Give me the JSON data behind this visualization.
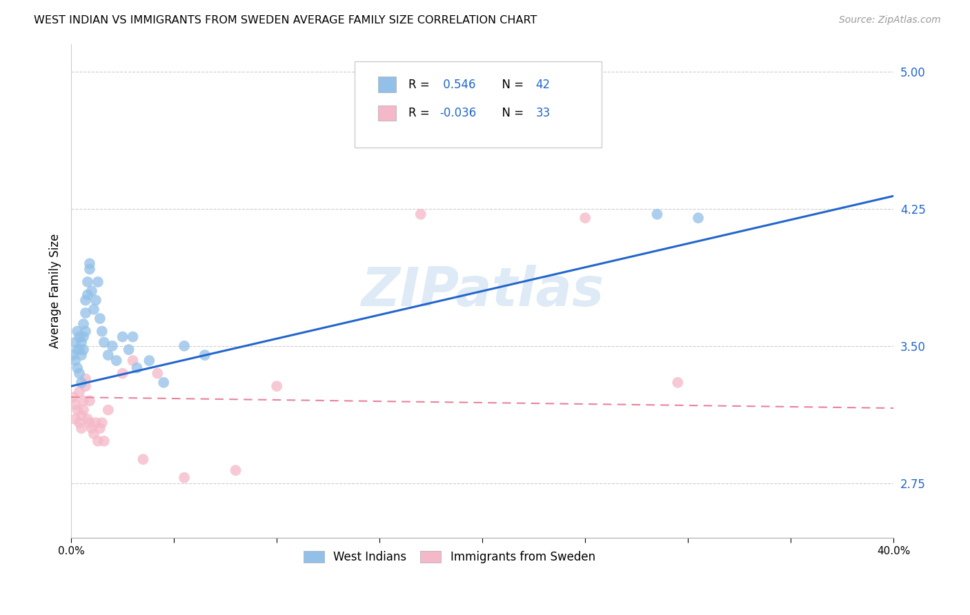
{
  "title": "WEST INDIAN VS IMMIGRANTS FROM SWEDEN AVERAGE FAMILY SIZE CORRELATION CHART",
  "source": "Source: ZipAtlas.com",
  "ylabel": "Average Family Size",
  "watermark": "ZIPatlas",
  "xlim": [
    0.0,
    0.4
  ],
  "ylim": [
    2.45,
    5.15
  ],
  "yticks": [
    2.75,
    3.5,
    4.25,
    5.0
  ],
  "xticks": [
    0.0,
    0.05,
    0.1,
    0.15,
    0.2,
    0.25,
    0.3,
    0.35,
    0.4
  ],
  "xtick_labels": [
    "0.0%",
    "",
    "",
    "",
    "",
    "",
    "",
    "",
    "40.0%"
  ],
  "legend1_r": "0.546",
  "legend1_n": "42",
  "legend2_r": "-0.036",
  "legend2_n": "33",
  "legend_bottom_label1": "West Indians",
  "legend_bottom_label2": "Immigrants from Sweden",
  "blue_color": "#92C0E8",
  "pink_color": "#F5B8C8",
  "blue_line_color": "#2266CC",
  "pink_line_color": "#E8829A",
  "blue_x": [
    0.001,
    0.002,
    0.002,
    0.003,
    0.003,
    0.003,
    0.004,
    0.004,
    0.004,
    0.005,
    0.005,
    0.005,
    0.006,
    0.006,
    0.006,
    0.007,
    0.007,
    0.007,
    0.008,
    0.008,
    0.009,
    0.009,
    0.01,
    0.011,
    0.012,
    0.013,
    0.014,
    0.015,
    0.016,
    0.018,
    0.02,
    0.022,
    0.025,
    0.028,
    0.03,
    0.032,
    0.038,
    0.045,
    0.055,
    0.065,
    0.285,
    0.305
  ],
  "blue_y": [
    3.45,
    3.52,
    3.42,
    3.58,
    3.48,
    3.38,
    3.55,
    3.48,
    3.35,
    3.52,
    3.45,
    3.3,
    3.62,
    3.55,
    3.48,
    3.75,
    3.68,
    3.58,
    3.85,
    3.78,
    3.92,
    3.95,
    3.8,
    3.7,
    3.75,
    3.85,
    3.65,
    3.58,
    3.52,
    3.45,
    3.5,
    3.42,
    3.55,
    3.48,
    3.55,
    3.38,
    3.42,
    3.3,
    3.5,
    3.45,
    4.22,
    4.2
  ],
  "pink_x": [
    0.001,
    0.002,
    0.002,
    0.003,
    0.004,
    0.004,
    0.005,
    0.005,
    0.006,
    0.006,
    0.007,
    0.007,
    0.008,
    0.009,
    0.009,
    0.01,
    0.011,
    0.012,
    0.013,
    0.014,
    0.015,
    0.016,
    0.018,
    0.025,
    0.03,
    0.035,
    0.042,
    0.055,
    0.08,
    0.1,
    0.17,
    0.25,
    0.295
  ],
  "pink_y": [
    3.22,
    3.18,
    3.1,
    3.15,
    3.25,
    3.08,
    3.12,
    3.05,
    3.2,
    3.15,
    3.28,
    3.32,
    3.1,
    3.08,
    3.2,
    3.05,
    3.02,
    3.08,
    2.98,
    3.05,
    3.08,
    2.98,
    3.15,
    3.35,
    3.42,
    2.88,
    3.35,
    2.78,
    2.82,
    3.28,
    4.22,
    4.2,
    3.3
  ],
  "blue_line_x0": 0.0,
  "blue_line_y0": 3.28,
  "blue_line_x1": 0.4,
  "blue_line_y1": 4.32,
  "pink_line_x0": 0.0,
  "pink_line_y0": 3.22,
  "pink_line_x1": 0.4,
  "pink_line_y1": 3.16
}
